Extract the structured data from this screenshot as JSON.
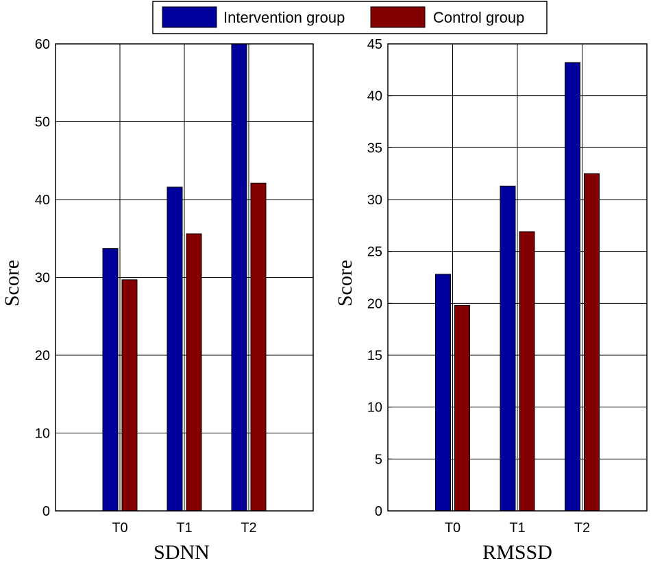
{
  "legend": {
    "items": [
      {
        "label": "Intervention group",
        "color": "#00009c"
      },
      {
        "label": "Control group",
        "color": "#840000"
      }
    ]
  },
  "chart_data": [
    {
      "type": "bar",
      "title": "",
      "xlabel": "SDNN",
      "ylabel": "Score",
      "categories": [
        "T0",
        "T1",
        "T2"
      ],
      "ylim": [
        0,
        60
      ],
      "yticks": [
        0,
        10,
        20,
        30,
        40,
        50,
        60
      ],
      "xlim": [
        0,
        4
      ],
      "grid": true,
      "series": [
        {
          "name": "Intervention group",
          "color": "#00009c",
          "values": [
            33.7,
            41.6,
            60
          ]
        },
        {
          "name": "Control group",
          "color": "#840000",
          "values": [
            29.7,
            35.6,
            42.1
          ]
        }
      ]
    },
    {
      "type": "bar",
      "title": "",
      "xlabel": "RMSSD",
      "ylabel": "Score",
      "categories": [
        "T0",
        "T1",
        "T2"
      ],
      "ylim": [
        0,
        45
      ],
      "yticks": [
        0,
        5,
        10,
        15,
        20,
        25,
        30,
        35,
        40,
        45
      ],
      "xlim": [
        0,
        4
      ],
      "grid": true,
      "series": [
        {
          "name": "Intervention group",
          "color": "#00009c",
          "values": [
            22.8,
            31.3,
            43.2
          ]
        },
        {
          "name": "Control group",
          "color": "#840000",
          "values": [
            19.8,
            26.9,
            32.5
          ]
        }
      ]
    }
  ]
}
